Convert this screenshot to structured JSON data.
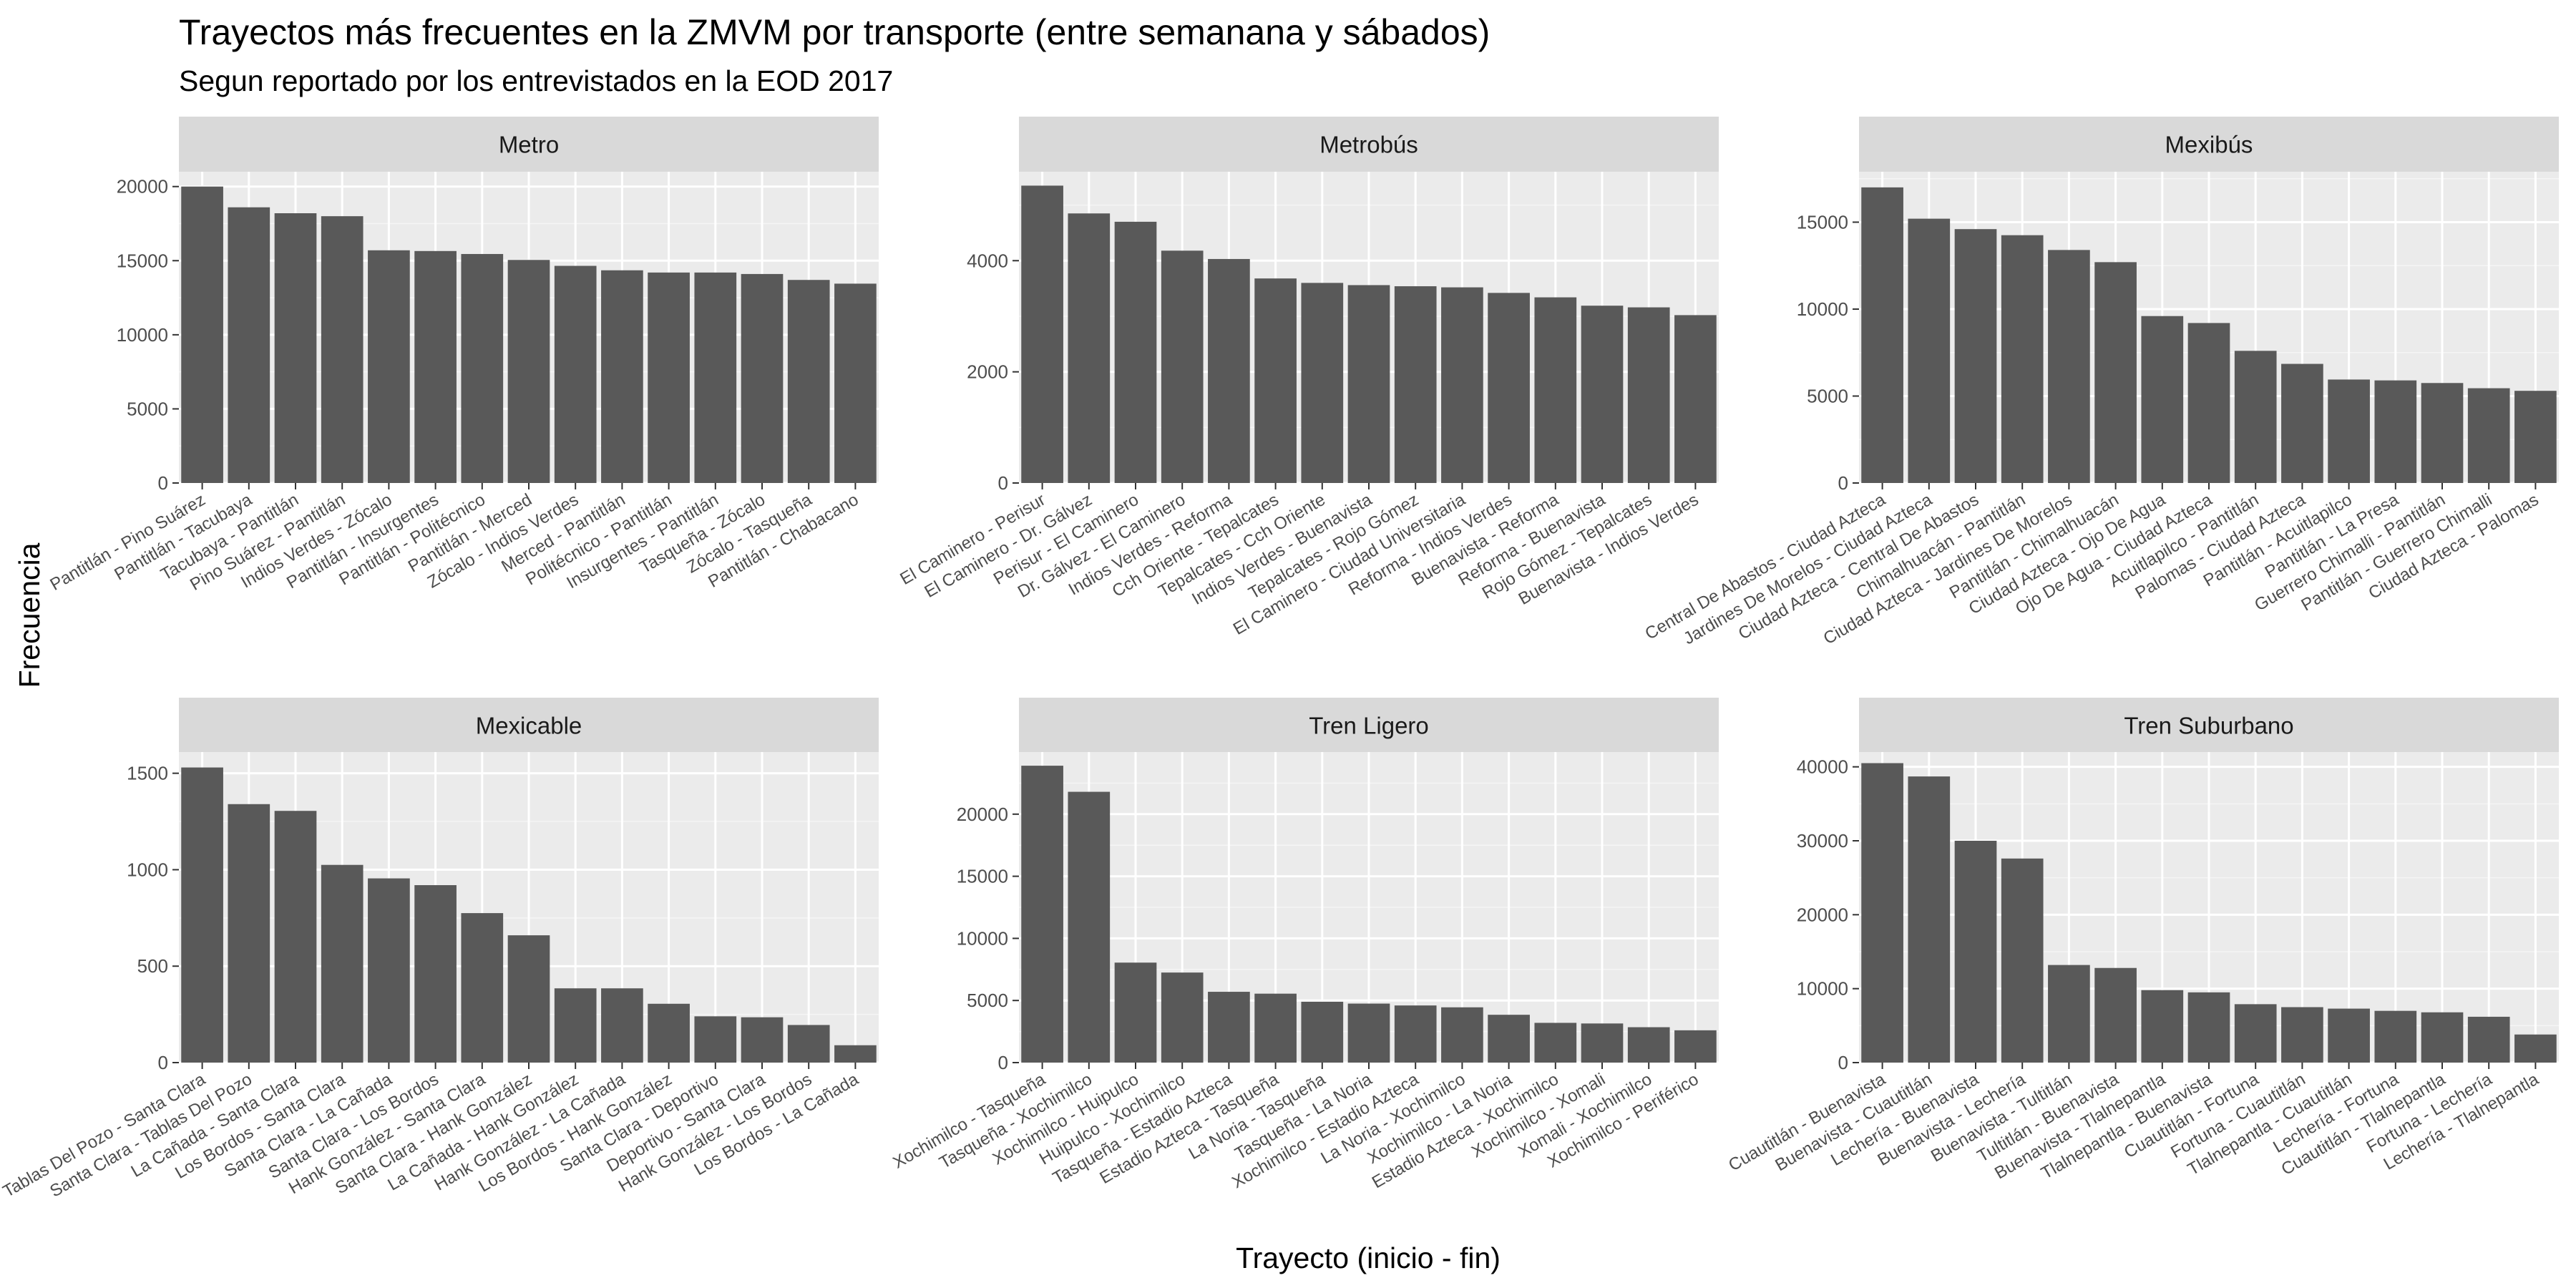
{
  "title": "Trayectos más frecuentes en la ZMVM por transporte (entre semanana y sábados)",
  "subtitle": "Segun reportado por los entrevistados en la EOD 2017",
  "colors": {
    "bar": "#595959",
    "panel": "#ebebeb",
    "strip": "#d9d9d9",
    "grid_major": "#ffffff",
    "grid_minor": "#f5f5f5",
    "tick_text": "#4d4d4d"
  },
  "chart_data": [
    {
      "type": "bar",
      "panel": "Metro",
      "xlabel": "Trayecto (inicio - fin)",
      "ylabel": "Frecuencia",
      "ylim": [
        0,
        21000
      ],
      "yticks": [
        0,
        5000,
        10000,
        15000,
        20000
      ],
      "grid": true,
      "categories": [
        "Pantitlán - Pino Suárez",
        "Pantitlán - Tacubaya",
        "Tacubaya - Pantitlán",
        "Pino Suárez - Pantitlán",
        "Indios Verdes - Zócalo",
        "Pantitlán - Insurgentes",
        "Pantitlán - Politécnico",
        "Pantitlán - Merced",
        "Zócalo - Indios Verdes",
        "Merced - Pantitlán",
        "Politécnico - Pantitlán",
        "Insurgentes - Pantitlán",
        "Tasqueña - Zócalo",
        "Zócalo - Tasqueña",
        "Pantitlán - Chabacano"
      ],
      "values": [
        20000,
        18600,
        18200,
        18000,
        15700,
        15650,
        15450,
        15050,
        14650,
        14350,
        14200,
        14200,
        14100,
        13700,
        13450
      ]
    },
    {
      "type": "bar",
      "panel": "Metrobús",
      "xlabel": "Trayecto (inicio - fin)",
      "ylabel": "Frecuencia",
      "ylim": [
        0,
        5600
      ],
      "yticks": [
        0,
        2000,
        4000
      ],
      "grid": true,
      "categories": [
        "El Caminero - Perisur",
        "El Caminero - Dr. Gálvez",
        "Perisur - El Caminero",
        "Dr. Gálvez - El Caminero",
        "Indios Verdes - Reforma",
        "Cch Oriente - Tepalcates",
        "Tepalcates - Cch Oriente",
        "Indios Verdes - Buenavista",
        "Tepalcates - Rojo Gómez",
        "El Caminero - Ciudad Universitaria",
        "Reforma - Indios Verdes",
        "Buenavista - Reforma",
        "Reforma - Buenavista",
        "Rojo Gómez - Tepalcates",
        "Buenavista - Indios Verdes"
      ],
      "values": [
        5350,
        4850,
        4700,
        4180,
        4030,
        3680,
        3600,
        3560,
        3540,
        3520,
        3420,
        3340,
        3190,
        3160,
        3020
      ]
    },
    {
      "type": "bar",
      "panel": "Mexibús",
      "xlabel": "Trayecto (inicio - fin)",
      "ylabel": "Frecuencia",
      "ylim": [
        0,
        17900
      ],
      "yticks": [
        0,
        5000,
        10000,
        15000
      ],
      "grid": true,
      "categories": [
        "Central De Abastos - Ciudad Azteca",
        "Jardines De Morelos - Ciudad Azteca",
        "Ciudad Azteca - Central De Abastos",
        "Chimalhuacán - Pantitlán",
        "Ciudad Azteca - Jardines De Morelos",
        "Pantitlán - Chimalhuacán",
        "Ciudad Azteca - Ojo De Agua",
        "Ojo De Agua - Ciudad Azteca",
        "Acuitlapilco - Pantitlán",
        "Palomas - Ciudad Azteca",
        "Pantitlán - Acuitlapilco",
        "Pantitlán - La Presa",
        "Guerrero Chimalli - Pantitlán",
        "Pantitlán - Guerrero Chimalli",
        "Ciudad Azteca - Palomas"
      ],
      "values": [
        17000,
        15200,
        14600,
        14250,
        13400,
        12700,
        9600,
        9200,
        7600,
        6850,
        5950,
        5900,
        5750,
        5450,
        5300
      ]
    },
    {
      "type": "bar",
      "panel": "Mexicable",
      "xlabel": "Trayecto (inicio - fin)",
      "ylabel": "Frecuencia",
      "ylim": [
        0,
        1610
      ],
      "yticks": [
        0,
        500,
        1000,
        1500
      ],
      "grid": true,
      "categories": [
        "Tablas Del Pozo - Santa Clara",
        "Santa Clara - Tablas Del Pozo",
        "La Cañada - Santa Clara",
        "Los Bordos - Santa Clara",
        "Santa Clara - La Cañada",
        "Santa Clara - Los Bordos",
        "Hank González - Santa Clara",
        "Santa Clara - Hank González",
        "La Cañada - Hank González",
        "Hank González - La Cañada",
        "Los Bordos - Hank González",
        "Santa Clara - Deportivo",
        "Deportivo - Santa Clara",
        "Hank González - Los Bordos",
        "Los Bordos - La Cañada"
      ],
      "values": [
        1530,
        1340,
        1305,
        1025,
        955,
        920,
        775,
        660,
        385,
        385,
        305,
        240,
        235,
        195,
        90
      ]
    },
    {
      "type": "bar",
      "panel": "Tren Ligero",
      "xlabel": "Trayecto (inicio - fin)",
      "ylabel": "Frecuencia",
      "ylim": [
        0,
        25000
      ],
      "yticks": [
        0,
        5000,
        10000,
        15000,
        20000
      ],
      "grid": true,
      "categories": [
        "Xochimilco - Tasqueña",
        "Tasqueña - Xochimilco",
        "Xochimilco - Huipulco",
        "Huipulco - Xochimilco",
        "Tasqueña - Estadio Azteca",
        "Estadio Azteca - Tasqueña",
        "La Noria - Tasqueña",
        "Tasqueña - La Noria",
        "Xochimilco - Estadio Azteca",
        "La Noria - Xochimilco",
        "Xochimilco - La Noria",
        "Estadio Azteca - Xochimilco",
        "Xochimilco - Xomali",
        "Xomali - Xochimilco",
        "Xochimilco - Periférico"
      ],
      "values": [
        23900,
        21800,
        8050,
        7250,
        5700,
        5550,
        4900,
        4750,
        4600,
        4450,
        3850,
        3200,
        3150,
        2850,
        2600
      ]
    },
    {
      "type": "bar",
      "panel": "Tren Suburbano",
      "xlabel": "Trayecto (inicio - fin)",
      "ylabel": "Frecuencia",
      "ylim": [
        0,
        42000
      ],
      "yticks": [
        0,
        10000,
        20000,
        30000,
        40000
      ],
      "grid": true,
      "categories": [
        "Cuautitlán - Buenavista",
        "Buenavista - Cuautitlán",
        "Lechería - Buenavista",
        "Buenavista - Lechería",
        "Buenavista - Tultitlán",
        "Tultitlán - Buenavista",
        "Buenavista - Tlalnepantla",
        "Tlalnepantla - Buenavista",
        "Cuautitlán - Fortuna",
        "Fortuna - Cuautitlán",
        "Tlalnepantla - Cuautitlán",
        "Lechería - Fortuna",
        "Cuautitlán - Tlalnepantla",
        "Fortuna - Lechería",
        "Lechería - Tlalnepantla"
      ],
      "values": [
        40500,
        38700,
        30000,
        27600,
        13200,
        12800,
        9800,
        9500,
        7900,
        7500,
        7300,
        7000,
        6800,
        6200,
        3800
      ]
    }
  ]
}
